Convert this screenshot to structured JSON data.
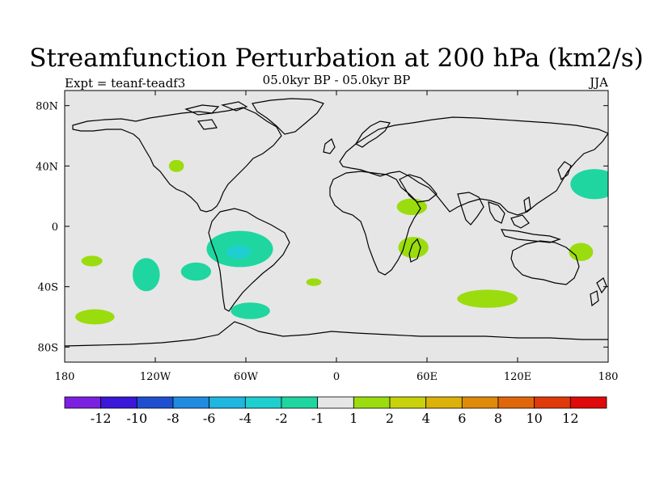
{
  "chart_data": {
    "type": "map-contour",
    "title": "Streamfunction Perturbation at 200 hPa (km2/s)",
    "subtitle": "05.0kyr BP - 05.0kyr BP",
    "left_label": "Expt = teanf-teadf3",
    "right_label": "JJA",
    "x_ticks": [
      "180",
      "120W",
      "60W",
      "0",
      "60E",
      "120E",
      "180"
    ],
    "x_tick_values": [
      -180,
      -120,
      -60,
      0,
      60,
      120,
      180
    ],
    "y_ticks": [
      "80N",
      "40N",
      "0",
      "40S",
      "80S"
    ],
    "y_tick_values": [
      80,
      40,
      0,
      -40,
      -80
    ],
    "xlim": [
      -180,
      180
    ],
    "ylim": [
      -90,
      90
    ],
    "colorbar": {
      "colors": [
        "#7b1fe0",
        "#3a17d9",
        "#1f4fd1",
        "#1f8ce0",
        "#1fb6e0",
        "#1fcfcf",
        "#1fd6a0",
        "#e6e6e6",
        "#9bdc0e",
        "#c8d20a",
        "#dcb10a",
        "#e08a0a",
        "#e0660a",
        "#e03a0a",
        "#e00a0a"
      ],
      "labels": [
        "-12",
        "-10",
        "-8",
        "-6",
        "-4",
        "-2",
        "-1",
        "1",
        "2",
        "4",
        "6",
        "8",
        "10",
        "12"
      ]
    },
    "anomalies": [
      {
        "lon": -64,
        "lat": -15,
        "rx": 22,
        "ry": 12,
        "level": "-2",
        "color": "#1fd6a0"
      },
      {
        "lon": -65,
        "lat": -17,
        "rx": 8,
        "ry": 4.5,
        "level": "-4",
        "color": "#1fcfcf"
      },
      {
        "lon": -126,
        "lat": -32,
        "rx": 9,
        "ry": 11,
        "level": "-2",
        "color": "#1fd6a0"
      },
      {
        "lon": -93,
        "lat": -30,
        "rx": 10,
        "ry": 6,
        "level": "-2",
        "color": "#1fd6a0"
      },
      {
        "lon": -57,
        "lat": -56,
        "rx": 13,
        "ry": 5.5,
        "level": "-2",
        "color": "#1fd6a0"
      },
      {
        "lon": 171,
        "lat": 28,
        "rx": 16,
        "ry": 10,
        "level": "-2",
        "color": "#1fd6a0"
      },
      {
        "lon": 50,
        "lat": 13,
        "rx": 10,
        "ry": 5.5,
        "level": "2",
        "color": "#9bdc0e"
      },
      {
        "lon": -106,
        "lat": 40,
        "rx": 5,
        "ry": 4,
        "level": "2",
        "color": "#9bdc0e"
      },
      {
        "lon": -162,
        "lat": -23,
        "rx": 7,
        "ry": 3.5,
        "level": "2",
        "color": "#9bdc0e"
      },
      {
        "lon": -160,
        "lat": -60,
        "rx": 13,
        "ry": 5,
        "level": "2",
        "color": "#9bdc0e"
      },
      {
        "lon": -15,
        "lat": -37,
        "rx": 5,
        "ry": 2.5,
        "level": "2",
        "color": "#9bdc0e"
      },
      {
        "lon": 51,
        "lat": -14,
        "rx": 10,
        "ry": 7,
        "level": "2",
        "color": "#9bdc0e"
      },
      {
        "lon": 100,
        "lat": -48,
        "rx": 20,
        "ry": 6,
        "level": "2",
        "color": "#9bdc0e"
      },
      {
        "lon": 162,
        "lat": -17,
        "rx": 8,
        "ry": 6,
        "level": "2",
        "color": "#9bdc0e"
      }
    ]
  }
}
